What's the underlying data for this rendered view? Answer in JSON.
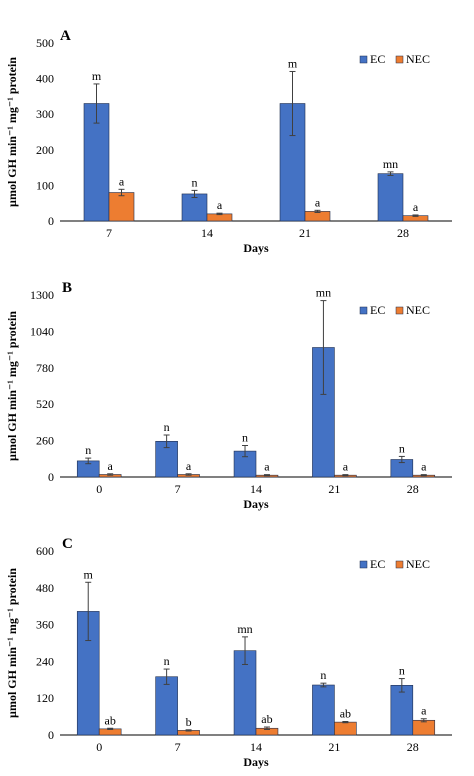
{
  "colors": {
    "EC": "#4472C4",
    "NEC": "#ED7D31",
    "axis": "#000000",
    "errorbar": "#404040"
  },
  "chart_data": [
    {
      "type": "bar",
      "panel": "A",
      "categories": [
        "7",
        "14",
        "21",
        "28"
      ],
      "xlabel": "Days",
      "ylabel": "µmol GH min⁻¹ mg⁻¹ protein",
      "ylim": [
        0,
        500
      ],
      "yticks": [
        0,
        100,
        200,
        300,
        400,
        500
      ],
      "legend": "top-right",
      "series": [
        {
          "name": "EC",
          "values": [
            330,
            76,
            330,
            133
          ],
          "errors": [
            55,
            10,
            90,
            5
          ],
          "labels": [
            "m",
            "n",
            "m",
            "mn"
          ]
        },
        {
          "name": "NEC",
          "values": [
            80,
            20,
            27,
            15
          ],
          "errors": [
            9,
            2,
            3,
            2
          ],
          "labels": [
            "a",
            "a",
            "a",
            "a"
          ]
        }
      ]
    },
    {
      "type": "bar",
      "panel": "B",
      "categories": [
        "0",
        "7",
        "14",
        "21",
        "28"
      ],
      "xlabel": "Days",
      "ylabel": "µmol GH min⁻¹ mg⁻¹ protein",
      "ylim": [
        0,
        1300
      ],
      "yticks": [
        0,
        260,
        520,
        780,
        1040,
        1300
      ],
      "legend": "top-right",
      "series": [
        {
          "name": "EC",
          "values": [
            115,
            255,
            185,
            925,
            125
          ],
          "errors": [
            20,
            45,
            40,
            335,
            22
          ],
          "labels": [
            "n",
            "n",
            "n",
            "mn",
            "n"
          ]
        },
        {
          "name": "NEC",
          "values": [
            18,
            18,
            13,
            13,
            13
          ],
          "errors": [
            5,
            5,
            4,
            4,
            4
          ],
          "labels": [
            "a",
            "a",
            "a",
            "a",
            "a"
          ]
        }
      ]
    },
    {
      "type": "bar",
      "panel": "C",
      "categories": [
        "0",
        "7",
        "14",
        "21",
        "28"
      ],
      "xlabel": "Days",
      "ylabel": "µmol GH min⁻¹ mg⁻¹ protein",
      "ylim": [
        0,
        600
      ],
      "yticks": [
        0,
        120,
        240,
        360,
        480,
        600
      ],
      "legend": "top-right",
      "series": [
        {
          "name": "EC",
          "values": [
            403,
            190,
            275,
            163,
            162
          ],
          "errors": [
            95,
            25,
            45,
            6,
            22
          ],
          "labels": [
            "m",
            "n",
            "mn",
            "n",
            "n"
          ]
        },
        {
          "name": "NEC",
          "values": [
            20,
            15,
            22,
            42,
            48
          ],
          "errors": [
            2,
            2,
            4,
            2,
            5
          ],
          "labels": [
            "ab",
            "b",
            "ab",
            "ab",
            "a"
          ]
        }
      ]
    }
  ]
}
